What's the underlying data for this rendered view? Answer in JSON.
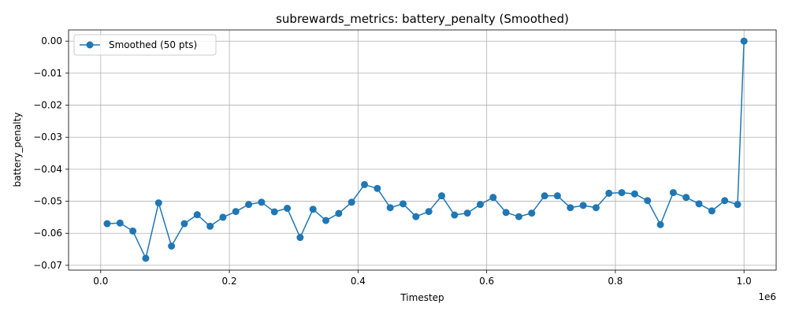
{
  "chart_data": {
    "type": "line",
    "title": "subrewards_metrics: battery_penalty (Smoothed)",
    "xlabel": "Timestep",
    "ylabel": "battery_penalty",
    "x_offset_label": "1e6",
    "xlim": [
      -0.05,
      1.05
    ],
    "ylim": [
      -0.0715,
      0.0035
    ],
    "x_ticks": [
      0.0,
      0.2,
      0.4,
      0.6,
      0.8,
      1.0
    ],
    "x_tick_labels": [
      "0.0",
      "0.2",
      "0.4",
      "0.6",
      "0.8",
      "1.0"
    ],
    "y_ticks": [
      0.0,
      -0.01,
      -0.02,
      -0.03,
      -0.04,
      -0.05,
      -0.06,
      -0.07
    ],
    "y_tick_labels": [
      "0.00",
      "−0.01",
      "−0.02",
      "−0.03",
      "−0.04",
      "−0.05",
      "−0.06",
      "−0.07"
    ],
    "grid": true,
    "legend_position": "top-left",
    "series": [
      {
        "name": "Smoothed (50 pts)",
        "color": "#1f77b4",
        "marker": "circle",
        "x": [
          0.01,
          0.03,
          0.05,
          0.07,
          0.09,
          0.11,
          0.13,
          0.15,
          0.17,
          0.19,
          0.21,
          0.23,
          0.25,
          0.27,
          0.29,
          0.31,
          0.33,
          0.35,
          0.37,
          0.39,
          0.41,
          0.43,
          0.45,
          0.47,
          0.49,
          0.51,
          0.53,
          0.55,
          0.57,
          0.59,
          0.61,
          0.63,
          0.65,
          0.67,
          0.69,
          0.71,
          0.73,
          0.75,
          0.77,
          0.79,
          0.81,
          0.83,
          0.85,
          0.87,
          0.89,
          0.91,
          0.93,
          0.95,
          0.97,
          0.99,
          1.0
        ],
        "y": [
          -0.057,
          -0.0568,
          -0.0593,
          -0.0678,
          -0.0505,
          -0.064,
          -0.057,
          -0.0542,
          -0.0578,
          -0.055,
          -0.0532,
          -0.051,
          -0.0503,
          -0.0533,
          -0.0522,
          -0.0613,
          -0.0525,
          -0.056,
          -0.0538,
          -0.0503,
          -0.0448,
          -0.046,
          -0.052,
          -0.0508,
          -0.0548,
          -0.0532,
          -0.0483,
          -0.0543,
          -0.0537,
          -0.051,
          -0.0488,
          -0.0535,
          -0.0548,
          -0.0537,
          -0.0483,
          -0.0483,
          -0.052,
          -0.0513,
          -0.052,
          -0.0475,
          -0.0473,
          -0.0477,
          -0.0498,
          -0.0573,
          -0.0473,
          -0.0488,
          -0.0508,
          -0.053,
          -0.0498,
          -0.051,
          0.0
        ]
      }
    ]
  }
}
